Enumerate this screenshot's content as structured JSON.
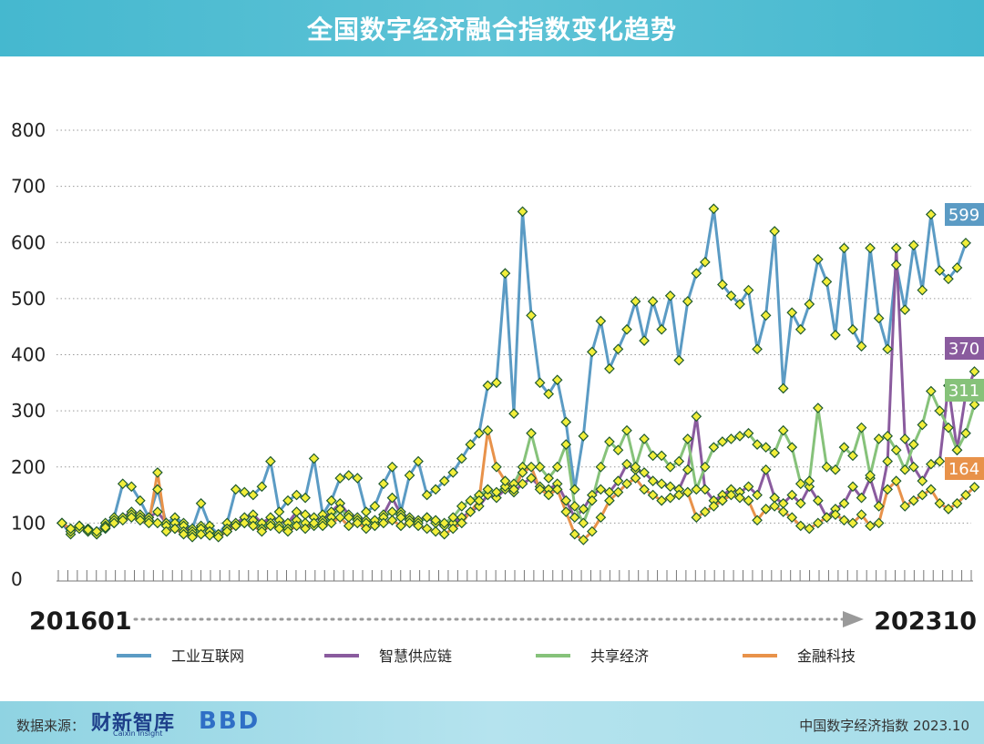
{
  "header": {
    "title": "全国数字经济融合指数变化趋势"
  },
  "footer": {
    "source_label": "数据来源：",
    "logo_primary": "财新智库",
    "logo_primary_sub": "Caixin Insight",
    "logo_secondary": "BBD",
    "note": "中国数字经济指数 2023.10"
  },
  "chart_data": {
    "type": "line",
    "title": "全国数字经济融合指数变化趋势",
    "ylim": [
      0,
      800
    ],
    "yticks": [
      0,
      100,
      200,
      300,
      400,
      500,
      600,
      700,
      800
    ],
    "grid": true,
    "legend_position": "bottom",
    "x_start_label": "201601",
    "x_end_label": "202310",
    "series": [
      {
        "name": "工业互联网",
        "color": "#5b9bc4",
        "end_label": "599",
        "values": [
          100,
          80,
          95,
          90,
          85,
          100,
          110,
          170,
          165,
          140,
          110,
          160,
          100,
          110,
          100,
          90,
          135,
          95,
          80,
          100,
          160,
          155,
          150,
          165,
          210,
          120,
          140,
          150,
          145,
          215,
          115,
          140,
          180,
          185,
          180,
          120,
          130,
          170,
          200,
          120,
          185,
          210,
          150,
          160,
          175,
          190,
          215,
          240,
          260,
          345,
          350,
          545,
          295,
          655,
          470,
          350,
          330,
          355,
          280,
          160,
          255,
          405,
          460,
          375,
          410,
          445,
          495,
          425,
          495,
          445,
          505,
          390,
          495,
          545,
          565,
          660,
          525,
          505,
          490,
          515,
          410,
          470,
          620,
          340,
          475,
          445,
          490,
          570,
          530,
          435,
          590,
          445,
          415,
          590,
          465,
          410,
          560,
          480,
          595,
          515,
          650,
          550,
          535,
          555,
          599
        ]
      },
      {
        "name": "智慧供应链",
        "color": "#8a5b9e",
        "end_label": "370",
        "values": [
          100,
          85,
          90,
          85,
          80,
          95,
          100,
          110,
          120,
          115,
          110,
          120,
          100,
          100,
          95,
          85,
          95,
          85,
          80,
          90,
          100,
          110,
          115,
          100,
          110,
          105,
          100,
          120,
          115,
          110,
          105,
          120,
          135,
          115,
          110,
          105,
          100,
          115,
          145,
          115,
          110,
          105,
          110,
          100,
          95,
          100,
          110,
          120,
          130,
          150,
          145,
          160,
          155,
          170,
          180,
          165,
          160,
          170,
          140,
          110,
          125,
          150,
          160,
          155,
          175,
          205,
          195,
          190,
          175,
          170,
          165,
          160,
          195,
          290,
          160,
          140,
          150,
          160,
          155,
          165,
          150,
          195,
          145,
          135,
          150,
          135,
          165,
          140,
          110,
          125,
          135,
          165,
          145,
          180,
          130,
          210,
          590,
          250,
          200,
          175,
          205,
          210,
          345,
          230,
          330,
          370
        ]
      },
      {
        "name": "共享经济",
        "color": "#86c27a",
        "end_label": "311",
        "values": [
          100,
          90,
          95,
          85,
          80,
          90,
          105,
          110,
          115,
          110,
          105,
          100,
          95,
          90,
          85,
          80,
          90,
          85,
          80,
          85,
          95,
          100,
          105,
          90,
          100,
          95,
          90,
          105,
          100,
          95,
          100,
          110,
          125,
          110,
          105,
          100,
          105,
          110,
          120,
          110,
          105,
          100,
          110,
          105,
          100,
          110,
          130,
          140,
          150,
          160,
          155,
          165,
          170,
          200,
          260,
          200,
          180,
          200,
          240,
          130,
          100,
          140,
          200,
          245,
          230,
          265,
          200,
          250,
          220,
          220,
          200,
          210,
          250,
          160,
          200,
          235,
          245,
          250,
          255,
          260,
          240,
          235,
          225,
          265,
          235,
          170,
          175,
          305,
          200,
          195,
          235,
          220,
          270,
          185,
          250,
          255,
          230,
          195,
          240,
          275,
          335,
          300,
          270,
          230,
          260,
          311
        ]
      },
      {
        "name": "金融科技",
        "color": "#e8924a",
        "end_label": "164",
        "values": [
          100,
          90,
          95,
          88,
          85,
          92,
          100,
          105,
          110,
          105,
          100,
          190,
          85,
          90,
          80,
          75,
          80,
          78,
          75,
          85,
          95,
          100,
          95,
          85,
          95,
          90,
          85,
          95,
          90,
          100,
          95,
          100,
          110,
          95,
          100,
          90,
          95,
          100,
          105,
          95,
          100,
          95,
          90,
          85,
          80,
          90,
          100,
          120,
          140,
          265,
          200,
          175,
          160,
          190,
          200,
          160,
          150,
          160,
          120,
          80,
          70,
          85,
          110,
          140,
          155,
          170,
          180,
          160,
          150,
          140,
          145,
          150,
          155,
          110,
          120,
          130,
          140,
          150,
          145,
          140,
          105,
          125,
          130,
          120,
          110,
          95,
          90,
          100,
          110,
          115,
          105,
          100,
          115,
          95,
          100,
          160,
          175,
          130,
          140,
          150,
          160,
          135,
          125,
          135,
          150,
          164
        ]
      }
    ],
    "legend": [
      "工业互联网",
      "智慧供应链",
      "共享经济",
      "金融科技"
    ]
  }
}
